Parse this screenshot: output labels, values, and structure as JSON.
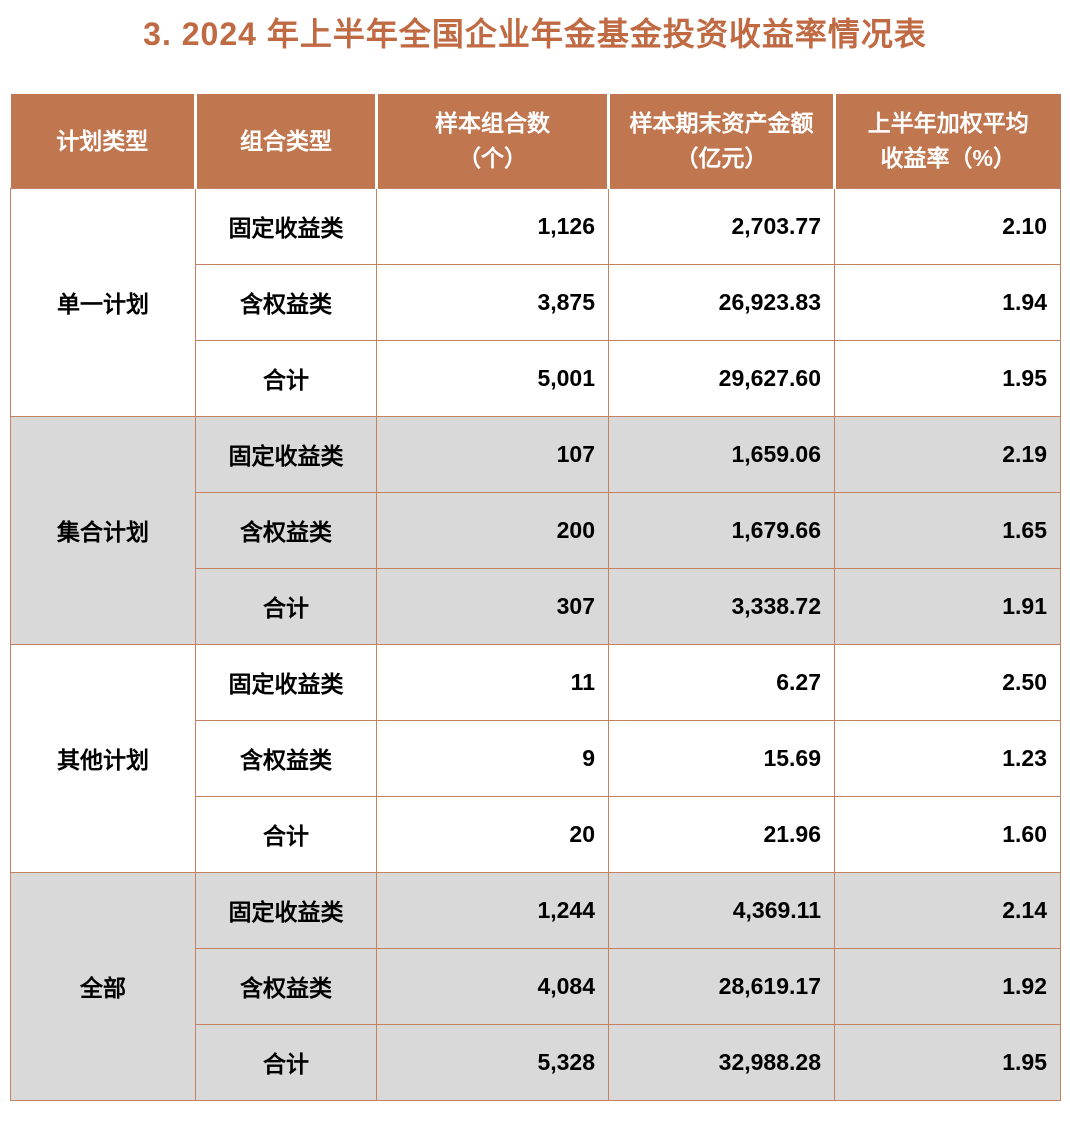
{
  "title": "3. 2024 年上半年全国企业年金基金投资收益率情况表",
  "colors": {
    "header_bg": "#C0764F",
    "border": "#C5825F",
    "shaded_row_bg": "#D9D9D9",
    "title_text": "#C06A43",
    "header_text": "#FFFFFF",
    "body_text": "#000000"
  },
  "table": {
    "headers": [
      "计划类型",
      "组合类型",
      "样本组合数\n（个）",
      "样本期末资产金额\n（亿元）",
      "上半年加权平均\n收益率（%）"
    ],
    "sections": [
      {
        "plan_type": "单一计划",
        "shaded": false,
        "rows": [
          {
            "portfolio_type": "固定收益类",
            "sample_count": "1,126",
            "assets": "2,703.77",
            "return_rate": "2.10"
          },
          {
            "portfolio_type": "含权益类",
            "sample_count": "3,875",
            "assets": "26,923.83",
            "return_rate": "1.94"
          },
          {
            "portfolio_type": "合计",
            "sample_count": "5,001",
            "assets": "29,627.60",
            "return_rate": "1.95"
          }
        ]
      },
      {
        "plan_type": "集合计划",
        "shaded": true,
        "rows": [
          {
            "portfolio_type": "固定收益类",
            "sample_count": "107",
            "assets": "1,659.06",
            "return_rate": "2.19"
          },
          {
            "portfolio_type": "含权益类",
            "sample_count": "200",
            "assets": "1,679.66",
            "return_rate": "1.65"
          },
          {
            "portfolio_type": "合计",
            "sample_count": "307",
            "assets": "3,338.72",
            "return_rate": "1.91"
          }
        ]
      },
      {
        "plan_type": "其他计划",
        "shaded": false,
        "rows": [
          {
            "portfolio_type": "固定收益类",
            "sample_count": "11",
            "assets": "6.27",
            "return_rate": "2.50"
          },
          {
            "portfolio_type": "含权益类",
            "sample_count": "9",
            "assets": "15.69",
            "return_rate": "1.23"
          },
          {
            "portfolio_type": "合计",
            "sample_count": "20",
            "assets": "21.96",
            "return_rate": "1.60"
          }
        ]
      },
      {
        "plan_type": "全部",
        "shaded": true,
        "rows": [
          {
            "portfolio_type": "固定收益类",
            "sample_count": "1,244",
            "assets": "4,369.11",
            "return_rate": "2.14"
          },
          {
            "portfolio_type": "含权益类",
            "sample_count": "4,084",
            "assets": "28,619.17",
            "return_rate": "1.92"
          },
          {
            "portfolio_type": "合计",
            "sample_count": "5,328",
            "assets": "32,988.28",
            "return_rate": "1.95"
          }
        ]
      }
    ]
  }
}
